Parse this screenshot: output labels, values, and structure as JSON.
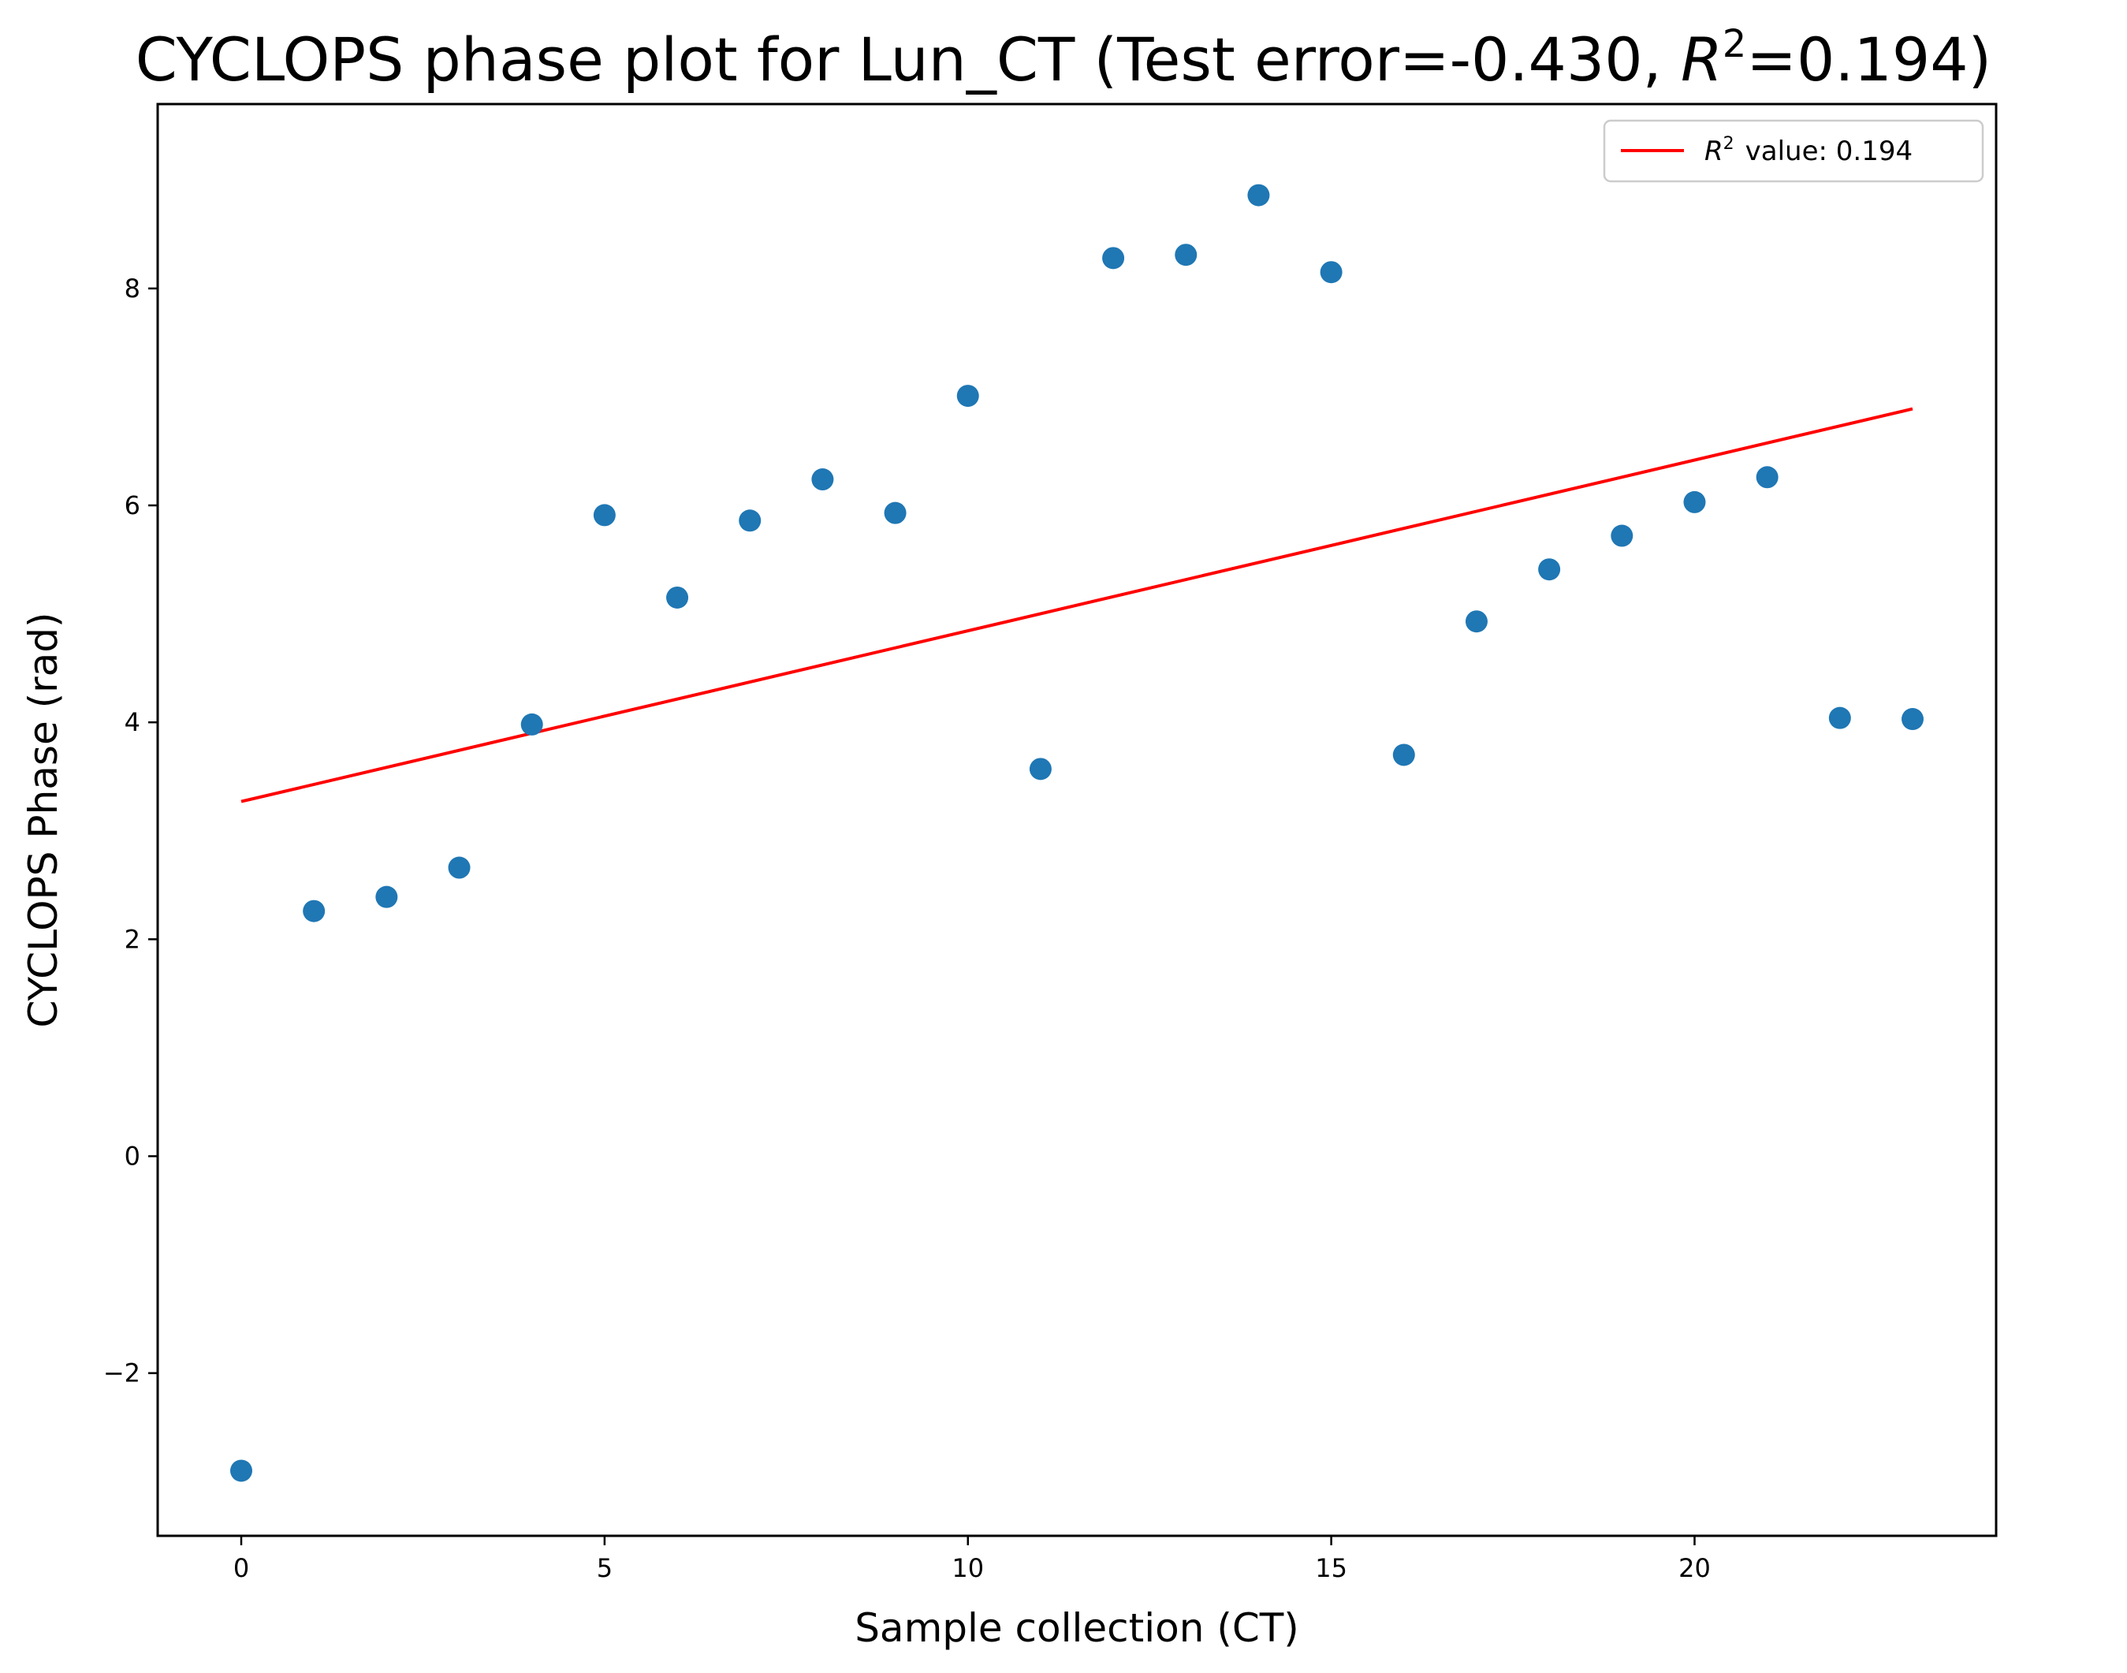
{
  "chart_data": {
    "type": "scatter",
    "title": "CYCLOPS phase plot for Lun_CT (Test error=-0.430, ",
    "title_r2_symbol": "R",
    "title_r2_exponent": "2",
    "title_r2_tail": "=0.194)",
    "xlabel": "Sample collection (CT)",
    "ylabel": "CYCLOPS Phase (rad)",
    "xlim": [
      -1.15,
      24.15
    ],
    "ylim": [
      -3.5,
      9.7
    ],
    "x_ticks": [
      0,
      5,
      10,
      15,
      20
    ],
    "y_ticks": [
      -2,
      0,
      2,
      4,
      6,
      8
    ],
    "x_tick_labels": [
      "0",
      "5",
      "10",
      "15",
      "20"
    ],
    "y_tick_labels": [
      "−2",
      "0",
      "2",
      "4",
      "6",
      "8"
    ],
    "grid": false,
    "legend_position": "top-right",
    "points": {
      "color": "#1f77b4",
      "x": [
        0,
        1,
        2,
        3,
        4,
        5,
        6,
        7,
        8,
        9,
        10,
        11,
        12,
        13,
        14,
        15,
        16,
        17,
        18,
        19,
        20,
        21,
        22,
        23
      ],
      "y": [
        -2.9,
        2.26,
        2.39,
        2.66,
        3.98,
        5.91,
        5.15,
        5.86,
        6.24,
        5.93,
        7.01,
        3.57,
        8.28,
        8.31,
        8.86,
        8.15,
        3.7,
        4.93,
        5.41,
        5.72,
        6.03,
        6.26,
        4.04,
        4.03
      ]
    },
    "fit_line": {
      "color": "#ff0000",
      "x": [
        0,
        23
      ],
      "y": [
        3.27,
        6.89
      ],
      "legend_label": "value: 0.194",
      "legend_symbol": "R",
      "legend_exponent": "2"
    }
  }
}
